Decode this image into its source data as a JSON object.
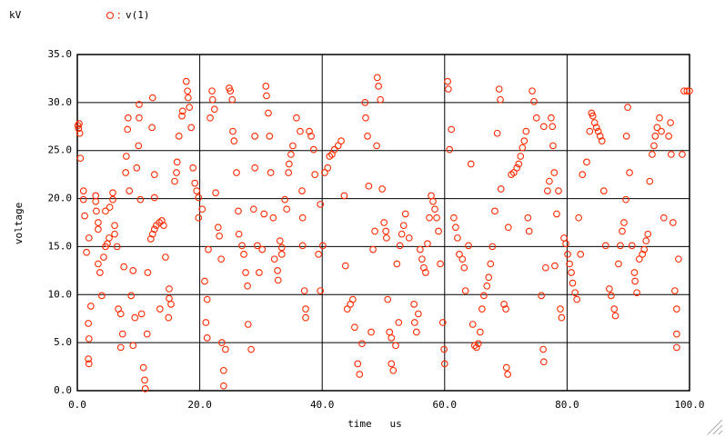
{
  "chart_data": {
    "type": "scatter",
    "y_unit": "kV",
    "ylabel": "voltage",
    "xlabel": "time   us",
    "xlim": [
      0,
      100
    ],
    "ylim": [
      0,
      35
    ],
    "xticks": [
      {
        "value": 0,
        "label": "0.0"
      },
      {
        "value": 20,
        "label": "20.0"
      },
      {
        "value": 40,
        "label": "40.0"
      },
      {
        "value": 60,
        "label": "60.0"
      },
      {
        "value": 80,
        "label": "80.0"
      },
      {
        "value": 100,
        "label": "100.0"
      }
    ],
    "yticks": [
      {
        "value": 0,
        "label": "0.0"
      },
      {
        "value": 5,
        "label": "5.0"
      },
      {
        "value": 10,
        "label": "10.0"
      },
      {
        "value": 15,
        "label": "15.0"
      },
      {
        "value": 20,
        "label": "20.0"
      },
      {
        "value": 25,
        "label": "25.0"
      },
      {
        "value": 30,
        "label": "30.0"
      },
      {
        "value": 35,
        "label": "35.0"
      }
    ],
    "grid": true,
    "x": [
      0.1,
      0.2,
      0.3,
      0.4,
      0.5,
      1,
      1,
      1.2,
      1.5,
      1.9,
      1.9,
      1.8,
      1.8,
      1.9,
      2.2,
      3,
      3,
      3.1,
      3.4,
      3.4,
      3.4,
      3.7,
      4,
      4.3,
      4.6,
      4.9,
      4.6,
      5.2,
      5.3,
      5.8,
      5.8,
      6.1,
      6.1,
      6.5,
      6.7,
      7.1,
      7.4,
      7.1,
      7.6,
      7.9,
      8,
      8.2,
      8.3,
      8.5,
      8.8,
      9.1,
      9.1,
      9.4,
      9.7,
      10,
      10.1,
      10.1,
      10.3,
      10.5,
      10.8,
      11,
      11.1,
      11.4,
      11.5,
      12,
      12.3,
      12.6,
      12.9,
      13.4,
      13.8,
      14.1,
      12.2,
      12.3,
      12.6,
      12.6,
      13.5,
      14.4,
      15,
      15.3,
      14.9,
      15,
      15.9,
      16.2,
      16.3,
      16.6,
      17.1,
      17.2,
      17.8,
      18,
      18.1,
      18.3,
      18.6,
      18.9,
      19.2,
      19.5,
      19.8,
      19.8,
      20.4,
      20.8,
      21,
      21.2,
      21.2,
      21.4,
      21.7,
      22,
      22.1,
      22.4,
      22.6,
      23,
      23.2,
      23.5,
      23.6,
      23.9,
      23.9,
      24.2,
      24.8,
      25,
      25.3,
      25.4,
      25.6,
      26,
      26.3,
      26.4,
      26.9,
      27.2,
      27.5,
      27.8,
      27.9,
      28.4,
      28.8,
      29,
      29,
      29.4,
      29.7,
      30.2,
      30.5,
      30.8,
      30.9,
      31.2,
      31.4,
      31.6,
      32,
      32.2,
      32.7,
      32.8,
      33.1,
      33.4,
      33.4,
      33.9,
      34.2,
      34.5,
      34.6,
      34.9,
      35.2,
      35.8,
      36.4,
      36.7,
      36.8,
      36.8,
      37.1,
      37.3,
      37.3,
      37.9,
      38.2,
      38.6,
      38.8,
      39.4,
      39.7,
      39.7,
      40.1,
      40.4,
      40.9,
      41.2,
      41.6,
      42,
      42.6,
      43.1,
      43.6,
      43.8,
      44.1,
      44.6,
      45,
      45.3,
      45.8,
      46.1,
      46.5,
      47,
      47.1,
      47.4,
      47.6,
      48,
      48.3,
      48.6,
      48.9,
      49,
      49.2,
      49.5,
      49.8,
      50.1,
      50.4,
      50.5,
      50.7,
      51,
      51.3,
      51.3,
      51.6,
      52,
      52.2,
      52.5,
      52.7,
      53,
      53.3,
      53.6,
      54.2,
      55,
      55.1,
      55.4,
      55.7,
      56,
      56.3,
      56.6,
      56.9,
      57.2,
      57.5,
      57.8,
      58.1,
      58.4,
      58.7,
      59,
      59.3,
      59.7,
      59.9,
      60,
      60.5,
      60.6,
      60.8,
      61.1,
      61.5,
      61.8,
      62.1,
      62.4,
      62.9,
      63.2,
      63.4,
      63.9,
      64.3,
      64.6,
      64.9,
      65.2,
      65.5,
      65.8,
      66.1,
      66.4,
      66.9,
      67.2,
      67.5,
      67.8,
      68.2,
      68.6,
      68.9,
      69.1,
      69.2,
      69.7,
      70,
      70.1,
      70.3,
      70.4,
      70.9,
      71.3,
      71.8,
      72.1,
      72.4,
      72.7,
      73,
      73.3,
      73.6,
      73.8,
      74.3,
      74.6,
      75,
      75.8,
      76.1,
      76.2,
      76.2,
      76.5,
      76.8,
      77.1,
      77.4,
      77.6,
      77.7,
      77.9,
      78,
      78.3,
      78.6,
      78.9,
      79.1,
      79.5,
      79.8,
      80.1,
      80.4,
      80.7,
      80.9,
      81.3,
      81.6,
      81.9,
      82.2,
      82.5,
      83.2,
      83.7,
      84,
      84.2,
      84.5,
      84.8,
      85.1,
      85.4,
      85.7,
      86,
      86.3,
      86.9,
      87.2,
      87.7,
      87.9,
      88.4,
      88.7,
      89,
      89.3,
      89.6,
      89.7,
      89.9,
      90.2,
      90.6,
      91,
      91.1,
      91.4,
      91.8,
      92.3,
      92.6,
      92.9,
      93.2,
      93.5,
      93.9,
      94.2,
      94.4,
      94.7,
      95.1,
      95.4,
      95.8,
      96.6,
      96.9,
      97,
      97.3,
      97.6,
      97.9,
      97.9,
      97.9,
      98.2,
      98.8,
      99.1,
      99.6,
      100
    ],
    "series": [
      {
        "name": "v(1)",
        "color": "#ff2a00",
        "values": [
          27.6,
          27.3,
          27.8,
          26.8,
          24.2,
          20.8,
          19.9,
          18.2,
          14.4,
          15.9,
          5.4,
          7.0,
          3.3,
          2.8,
          8.8,
          20.3,
          19.7,
          18.7,
          17.5,
          16.8,
          13.2,
          12.3,
          9.9,
          13.9,
          15,
          15.3,
          18.7,
          15.9,
          19.1,
          20.6,
          19.9,
          17.2,
          16.3,
          15,
          8.5,
          8.0,
          5.9,
          4.5,
          12.9,
          22.7,
          24.4,
          27.2,
          28.4,
          20.8,
          9.9,
          4.7,
          12.5,
          7.6,
          23.2,
          25.5,
          29.8,
          28.4,
          19.9,
          8.0,
          2.4,
          1.1,
          0.2,
          5.9,
          12.3,
          15.8,
          16.3,
          16.8,
          17.2,
          17.5,
          17.7,
          17.2,
          27.4,
          30.5,
          22.5,
          20.1,
          8.5,
          13.9,
          10.6,
          9.0,
          7.6,
          9.6,
          21.8,
          22.7,
          23.8,
          26.5,
          28.6,
          29.1,
          32.2,
          31.2,
          30.5,
          29.5,
          27.4,
          23.2,
          21.6,
          20.8,
          20.1,
          18,
          18.9,
          11.4,
          7.1,
          5.5,
          9.5,
          14.7,
          28.4,
          31.2,
          30.3,
          29.3,
          20.6,
          17,
          16.1,
          13.7,
          5.0,
          2.1,
          0.5,
          4.3,
          31.5,
          31.2,
          30.3,
          27,
          26,
          22.7,
          18.7,
          16.3,
          15.1,
          14.2,
          12.3,
          10.9,
          6.9,
          4.3,
          18.9,
          26.5,
          23.2,
          15.1,
          12.3,
          14.7,
          18.4,
          31.7,
          30.7,
          28.9,
          26.5,
          22.7,
          18,
          13.7,
          12.5,
          11.5,
          15.6,
          14.9,
          14.2,
          19.9,
          18.9,
          22.7,
          23.6,
          24.6,
          25.5,
          28.4,
          27,
          20.8,
          18,
          15.1,
          10.4,
          8.5,
          7.6,
          27,
          26.5,
          25.1,
          22.5,
          14.2,
          19.4,
          10.4,
          15.1,
          22.7,
          23.2,
          24.4,
          24.6,
          25.1,
          25.5,
          26,
          20.3,
          13,
          8.5,
          9.0,
          9.5,
          6.6,
          2.8,
          1.7,
          4.9,
          30,
          28.4,
          26.5,
          21.3,
          6.1,
          14.7,
          16.6,
          25.5,
          32.6,
          31.7,
          30.3,
          21,
          17.5,
          16.6,
          15.9,
          9.5,
          6.1,
          5.5,
          2.8,
          2.1,
          4.7,
          13.2,
          7.1,
          15.1,
          16.3,
          17.2,
          18.4,
          15.9,
          9.0,
          7.1,
          6.1,
          8,
          14.7,
          13.7,
          12.8,
          12.3,
          15.3,
          18,
          20.3,
          19.7,
          18.9,
          18,
          16.6,
          13.2,
          7.1,
          4.3,
          2.8,
          32.2,
          31.4,
          25.1,
          27.2,
          18,
          17,
          15.9,
          14.2,
          13.7,
          12.8,
          10.4,
          15.1,
          23.6,
          6.9,
          4.7,
          4.5,
          4.9,
          6.1,
          8.5,
          9.9,
          10.9,
          11.8,
          13.2,
          15,
          18.7,
          26.8,
          31.4,
          30.3,
          21,
          9.0,
          8.5,
          2.4,
          1.7,
          17,
          22.5,
          22.7,
          23.2,
          23.6,
          24.4,
          25.3,
          26,
          27,
          18,
          16.6,
          31.2,
          30.1,
          28.4,
          9.9,
          4.3,
          3.0,
          27.5,
          12.8,
          20.8,
          21.8,
          28.4,
          27.5,
          25.5,
          22.7,
          13,
          18.4,
          20.8,
          8.5,
          7.6,
          15.9,
          15.3,
          14.2,
          13.2,
          12.3,
          11.2,
          10.2,
          9.5,
          18,
          14.2,
          22.5,
          23.8,
          27,
          28.9,
          28.6,
          27.9,
          27.4,
          27,
          26.5,
          26,
          20.8,
          15.1,
          10.6,
          9.9,
          8.5,
          7.8,
          13.2,
          15.1,
          16.6,
          17.5,
          19.9,
          26.5,
          29.5,
          22.7,
          15.1,
          12.3,
          11.4,
          10.2,
          13.7,
          14.2,
          14.7,
          15.6,
          16.3,
          21.8,
          24.6,
          25.5,
          26.5,
          27.4,
          28.4,
          27,
          18,
          26.5,
          27.9,
          24.6,
          17.5,
          10.4,
          8.5,
          5.9,
          4.5,
          13.7,
          24.6,
          31.2,
          31.2,
          31.2
        ]
      }
    ]
  }
}
